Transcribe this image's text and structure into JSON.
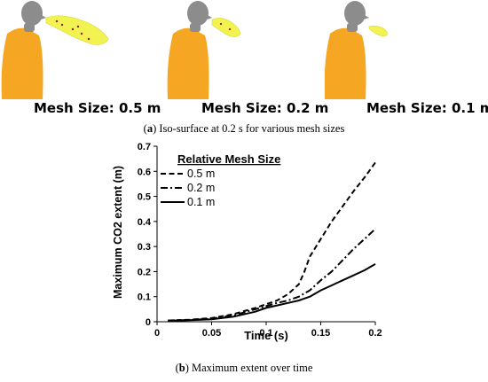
{
  "figure_a": {
    "panels": [
      {
        "label": "Mesh Size: 0.5 m"
      },
      {
        "label": "Mesh Size: 0.2 m"
      },
      {
        "label": "Mesh Size: 0.1 m"
      }
    ],
    "caption_letter": "a",
    "caption_text": " Iso-surface at 0.2 s for various mesh sizes"
  },
  "figure_b": {
    "caption_letter": "b",
    "caption_text": " Maximum extent over time"
  },
  "colors": {
    "body": "#f5a623",
    "head": "#8c8c8c",
    "plume": "#f2f250"
  },
  "chart_data": {
    "type": "line",
    "xlabel": "Time (s)",
    "ylabel": "Maximum CO2 extent (m)",
    "xlim": [
      0,
      0.2
    ],
    "ylim": [
      0,
      0.7
    ],
    "xticks": [
      "0",
      "0.05",
      "0.1",
      "0.15",
      "0.2"
    ],
    "yticks": [
      "0",
      "0.1",
      "0.2",
      "0.3",
      "0.4",
      "0.5",
      "0.6",
      "0.7"
    ],
    "grid": false,
    "legend_title": "Relative Mesh Size",
    "legend_position": "top-left",
    "series": [
      {
        "name": "0.5 m",
        "style": "dashed",
        "x": [
          0.01,
          0.03,
          0.05,
          0.07,
          0.09,
          0.11,
          0.12,
          0.13,
          0.135,
          0.14,
          0.15,
          0.16,
          0.17,
          0.18,
          0.19,
          0.2
        ],
        "y": [
          0.005,
          0.008,
          0.015,
          0.03,
          0.055,
          0.085,
          0.11,
          0.15,
          0.2,
          0.26,
          0.33,
          0.4,
          0.46,
          0.52,
          0.575,
          0.635
        ]
      },
      {
        "name": "0.2 m",
        "style": "dashdot",
        "x": [
          0.01,
          0.03,
          0.05,
          0.07,
          0.09,
          0.11,
          0.12,
          0.13,
          0.14,
          0.15,
          0.16,
          0.17,
          0.18,
          0.19,
          0.2
        ],
        "y": [
          0.005,
          0.007,
          0.012,
          0.025,
          0.05,
          0.075,
          0.085,
          0.1,
          0.125,
          0.165,
          0.2,
          0.245,
          0.29,
          0.33,
          0.37
        ]
      },
      {
        "name": "0.1 m",
        "style": "solid",
        "x": [
          0.01,
          0.03,
          0.05,
          0.07,
          0.09,
          0.1,
          0.11,
          0.12,
          0.13,
          0.14,
          0.15,
          0.16,
          0.17,
          0.18,
          0.19,
          0.2
        ],
        "y": [
          0.004,
          0.006,
          0.01,
          0.02,
          0.04,
          0.055,
          0.065,
          0.075,
          0.085,
          0.1,
          0.125,
          0.145,
          0.165,
          0.185,
          0.205,
          0.23
        ]
      }
    ]
  }
}
